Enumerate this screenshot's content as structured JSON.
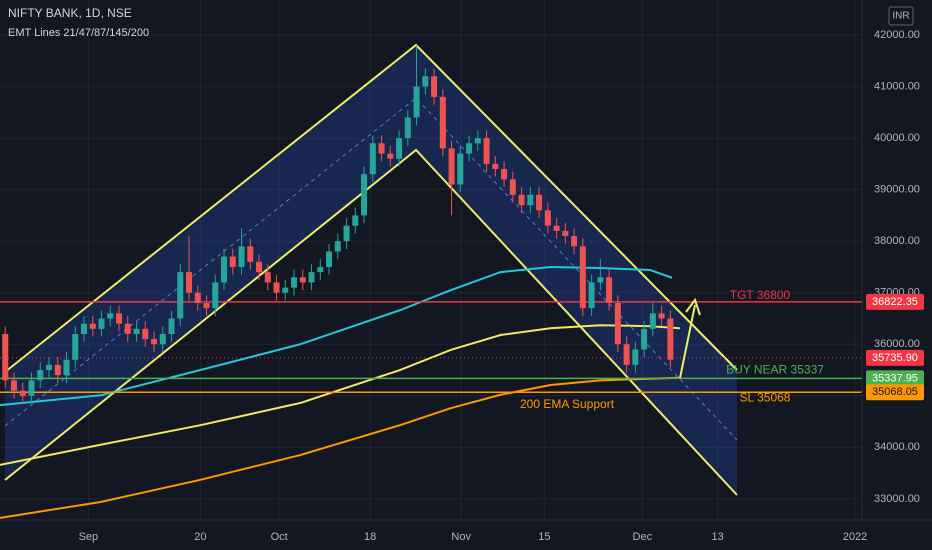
{
  "chart_data": {
    "type": "candlestick",
    "title": "NIFTY BANK, 1D, NSE",
    "subtitle": "EMT Lines 21/47/87/145/200",
    "currency": "INR",
    "up_color": "#26a69a",
    "down_color": "#ef5350",
    "open": [
      36200,
      35300,
      35100,
      35000,
      35300,
      35500,
      35600,
      35400,
      35700,
      36200,
      36400,
      36300,
      36500,
      36600,
      36400,
      36200,
      36300,
      36100,
      36000,
      36200,
      36500,
      37400,
      37000,
      36800,
      36700,
      37200,
      37700,
      37500,
      37900,
      37600,
      37400,
      37200,
      37000,
      37100,
      37300,
      37200,
      37400,
      37500,
      37800,
      38000,
      38300,
      38500,
      39300,
      39900,
      39700,
      39600,
      40000,
      40400,
      41000,
      41200,
      40800,
      39800,
      39100,
      39700,
      39900,
      40000,
      39500,
      39400,
      39200,
      38900,
      38700,
      38900,
      38600,
      38300,
      38200,
      38100,
      37900,
      36700,
      37200,
      37300,
      36800,
      36000,
      35600,
      35900,
      36300,
      36600,
      36500
    ],
    "high": [
      36350,
      35450,
      35250,
      35450,
      35650,
      35750,
      35750,
      35850,
      36350,
      36550,
      36550,
      36650,
      36750,
      36750,
      36550,
      36450,
      36450,
      36250,
      36350,
      36650,
      37550,
      38100,
      37150,
      36950,
      37350,
      37850,
      37850,
      38250,
      38050,
      37750,
      37550,
      37350,
      37250,
      37450,
      37450,
      37550,
      37650,
      37950,
      38150,
      38450,
      38650,
      39450,
      40050,
      40050,
      39850,
      40150,
      40550,
      41800,
      41350,
      41350,
      40950,
      39950,
      39850,
      40050,
      40150,
      40150,
      39650,
      39550,
      39350,
      39050,
      39050,
      39050,
      38750,
      38450,
      38350,
      38250,
      38050,
      37350,
      37650,
      37450,
      36950,
      36150,
      36050,
      36450,
      36800,
      36750,
      36650
    ],
    "low": [
      35150,
      34950,
      34850,
      34850,
      35150,
      35350,
      35250,
      35250,
      35550,
      36050,
      36150,
      36150,
      36350,
      36250,
      36050,
      36050,
      35950,
      35850,
      35850,
      36050,
      36350,
      36850,
      36650,
      36550,
      36550,
      37050,
      37350,
      37350,
      37450,
      37250,
      37050,
      36850,
      36850,
      36950,
      37050,
      37050,
      37250,
      37350,
      37650,
      37850,
      38150,
      38350,
      39150,
      39550,
      39450,
      39450,
      39850,
      40250,
      40850,
      40650,
      39650,
      38500,
      38950,
      39550,
      39750,
      39350,
      39250,
      39050,
      38750,
      38550,
      38550,
      38450,
      38150,
      38050,
      37950,
      37750,
      36550,
      36550,
      37050,
      36650,
      35850,
      35450,
      35450,
      35750,
      36150,
      36350,
      35550
    ],
    "close": [
      35300,
      35100,
      35000,
      35300,
      35500,
      35600,
      35400,
      35700,
      36200,
      36400,
      36300,
      36500,
      36600,
      36400,
      36200,
      36300,
      36100,
      36000,
      36200,
      36500,
      37400,
      37000,
      36800,
      36700,
      37200,
      37700,
      37500,
      37900,
      37600,
      37400,
      37200,
      37000,
      37100,
      37300,
      37200,
      37400,
      37500,
      37800,
      38000,
      38300,
      38500,
      39300,
      39900,
      39700,
      39600,
      40000,
      40400,
      41000,
      41200,
      40800,
      39800,
      39100,
      39700,
      39900,
      40000,
      39500,
      39400,
      39200,
      38900,
      38700,
      38900,
      38600,
      38300,
      38200,
      38100,
      37900,
      36700,
      37200,
      37300,
      36800,
      36000,
      35600,
      35900,
      36300,
      36600,
      36500,
      35700
    ],
    "ema_lines": [
      {
        "color": "#26c6da",
        "x": [
          -0.6,
          10.9,
          22.3,
          33.7,
          45.1,
          50.9,
          56.6,
          62.3,
          68,
          73.7,
          76.2
        ],
        "values": [
          34820,
          35010,
          35500,
          36000,
          36660,
          37050,
          37400,
          37500,
          37480,
          37440,
          37290
        ]
      },
      {
        "color": "#f5e663",
        "x": [
          -0.6,
          10.9,
          22.3,
          33.7,
          45.1,
          50.9,
          56.6,
          62.3,
          68,
          73.7,
          77.1
        ],
        "values": [
          33660,
          34050,
          34430,
          34860,
          35500,
          35890,
          36180,
          36310,
          36370,
          36350,
          36310
        ]
      },
      {
        "color": "#ff9800",
        "x": [
          -0.6,
          10.9,
          22.3,
          33.7,
          45.1,
          50.9,
          56.6,
          62.3,
          68,
          77.1
        ],
        "values": [
          32630,
          32940,
          33370,
          33850,
          34430,
          34760,
          35020,
          35210,
          35300,
          35350
        ]
      }
    ],
    "levels": [
      {
        "label": "TGT 36800",
        "value": 36822.35,
        "tag": "36822.35",
        "color": "#f23645"
      },
      {
        "label": "BUY NEAR 35337",
        "value": 35337.95,
        "tag": "35337.95",
        "color": "#4caf50"
      },
      {
        "label": "SL 35068",
        "value": 35068.05,
        "tag": "35068.05",
        "color": "#ff9800"
      }
    ],
    "last_price": {
      "value": 35735.9,
      "tag": "35735.90",
      "color": "#f23645"
    },
    "annotation": "200 EMA Support",
    "xlim": [
      -0.6,
      97.9
    ],
    "ylim": [
      32590,
      42680
    ],
    "yticks": [
      {
        "value": 33000,
        "label": "33000.00"
      },
      {
        "value": 34000,
        "label": "34000.00"
      },
      {
        "value": 35000,
        "label": "35000.00"
      },
      {
        "value": 36000,
        "label": "36000.00"
      },
      {
        "value": 37000,
        "label": "37000.00"
      },
      {
        "value": 38000,
        "label": "38000.00"
      },
      {
        "value": 39000,
        "label": "39000.00"
      },
      {
        "value": 40000,
        "label": "40000.00"
      },
      {
        "value": 41000,
        "label": "41000.00"
      },
      {
        "value": 42000,
        "label": "42000.00"
      }
    ],
    "xticks": [
      {
        "value": 9.5,
        "label": "Sep"
      },
      {
        "value": 22.3,
        "label": "20"
      },
      {
        "value": 31.3,
        "label": "Oct"
      },
      {
        "value": 41.7,
        "label": "18"
      },
      {
        "value": 52.1,
        "label": "Nov"
      },
      {
        "value": 61.6,
        "label": "15"
      },
      {
        "value": 72.8,
        "label": "Dec"
      },
      {
        "value": 81.4,
        "label": "13"
      },
      {
        "value": 97.1,
        "label": "2022"
      }
    ],
    "grid": true
  }
}
